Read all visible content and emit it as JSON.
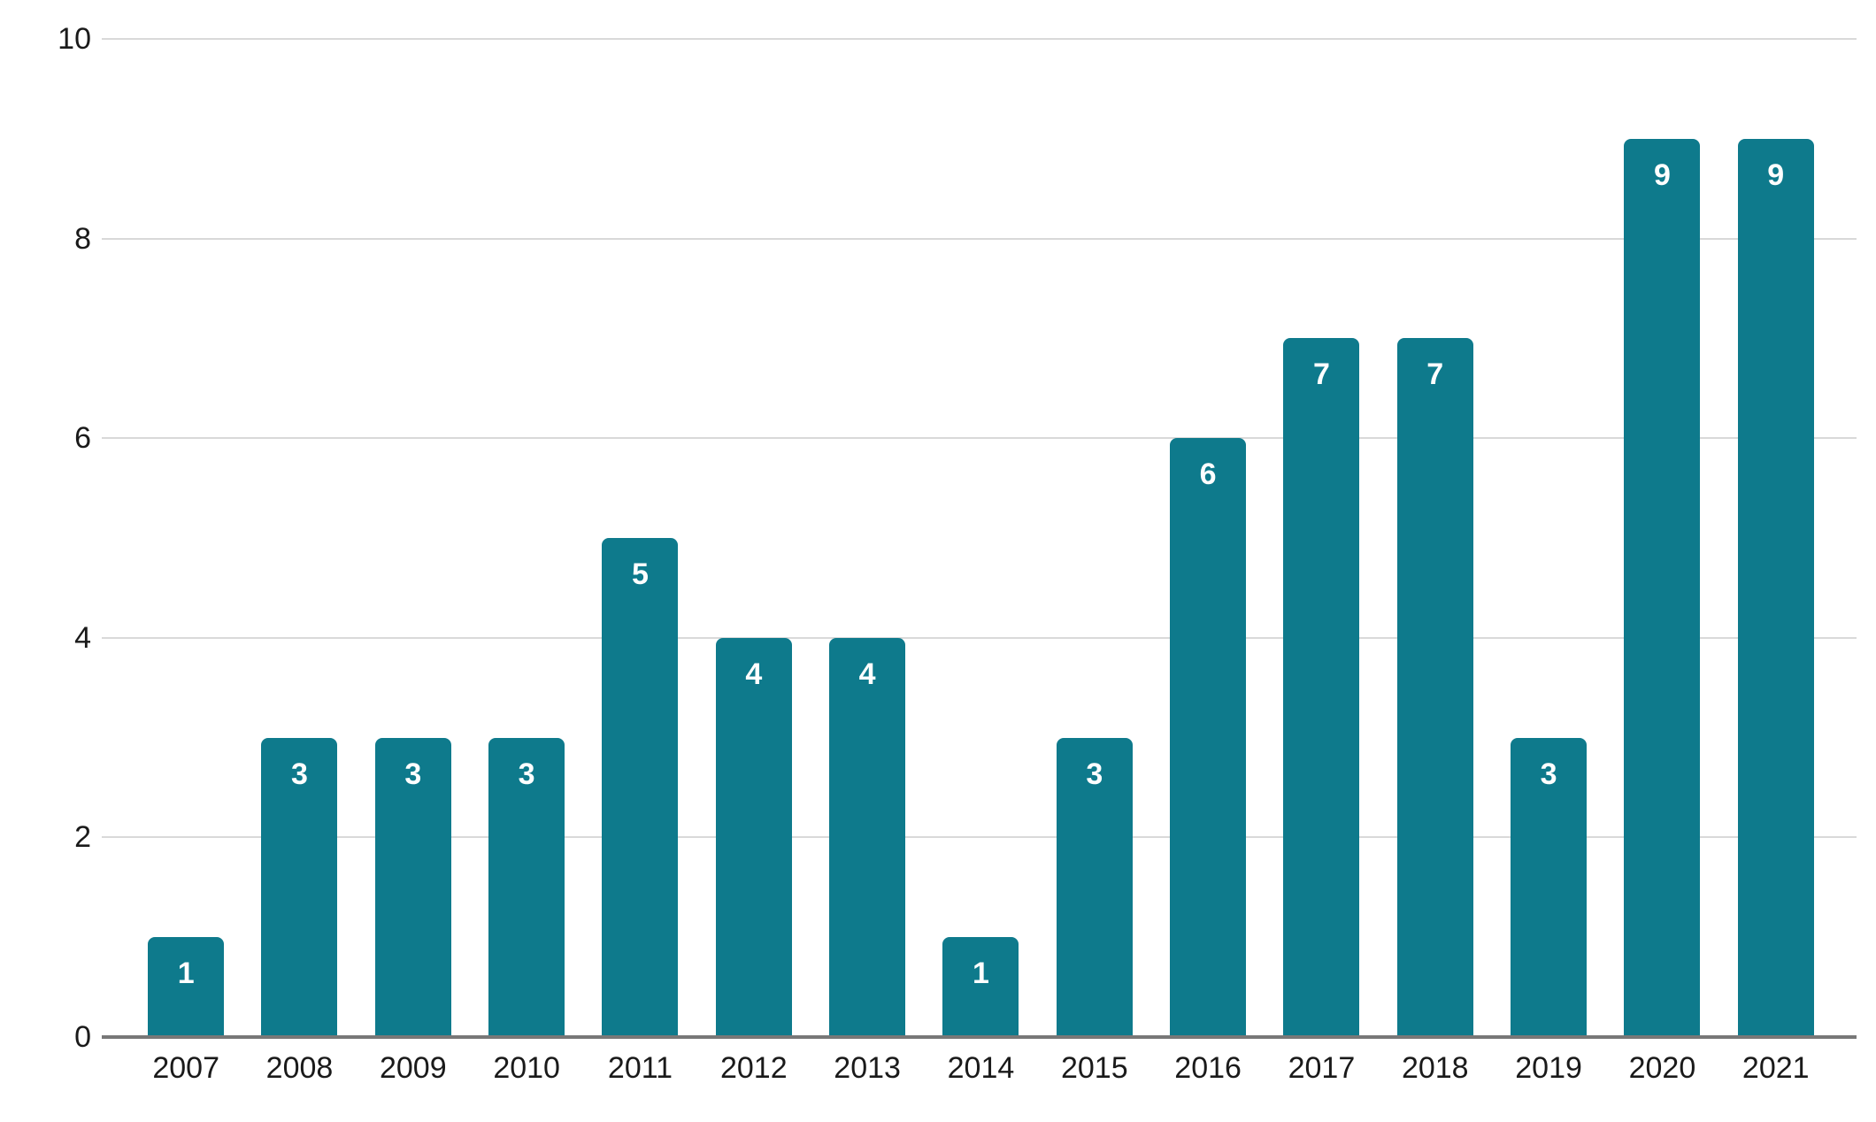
{
  "chart_data": {
    "type": "bar",
    "title": "",
    "xlabel": "",
    "ylabel": "",
    "categories": [
      "2007",
      "2008",
      "2009",
      "2010",
      "2011",
      "2012",
      "2013",
      "2014",
      "2015",
      "2016",
      "2017",
      "2018",
      "2019",
      "2020",
      "2021"
    ],
    "values": [
      1,
      3,
      3,
      3,
      5,
      4,
      4,
      1,
      3,
      6,
      7,
      7,
      3,
      9,
      9
    ],
    "ylim": [
      0,
      10
    ],
    "yticks": [
      0,
      2,
      4,
      6,
      8,
      10
    ],
    "grid": true,
    "legend": "none",
    "bar_color": "#0E7A8C",
    "value_label_color": "#FFFFFF",
    "axis_label_color": "#1A1A1A",
    "gridline_color": "#D9D9D9",
    "baseline_color": "#787878",
    "background_color": "#FFFFFF"
  }
}
